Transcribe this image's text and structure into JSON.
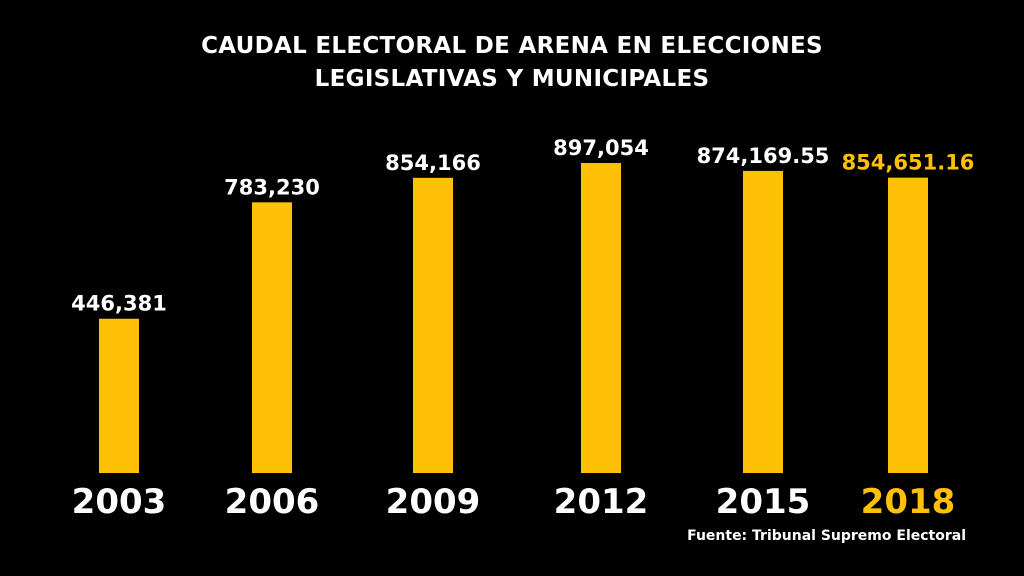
{
  "chart_data": {
    "type": "bar",
    "title_lines": [
      "CAUDAL ELECTORAL DE ARENA EN ELECCIONES",
      "LEGISLATIVAS Y MUNICIPALES"
    ],
    "categories": [
      "2003",
      "2006",
      "2009",
      "2012",
      "2015",
      "2018"
    ],
    "values": [
      446381,
      783230,
      854166,
      897054,
      874169.55,
      854651.16
    ],
    "value_labels": [
      "446,381",
      "783,230",
      "854,166",
      "897,054",
      "874,169.55",
      "854,651.16"
    ],
    "highlight_index": 5,
    "xlabel": "",
    "ylabel": "",
    "grid": false,
    "source": "Fuente: Tribunal Supremo Electoral",
    "colors": {
      "background": "#000000",
      "bar": "#FFC107",
      "text": "#FFFFFF",
      "highlight_text": "#FFC107"
    }
  }
}
